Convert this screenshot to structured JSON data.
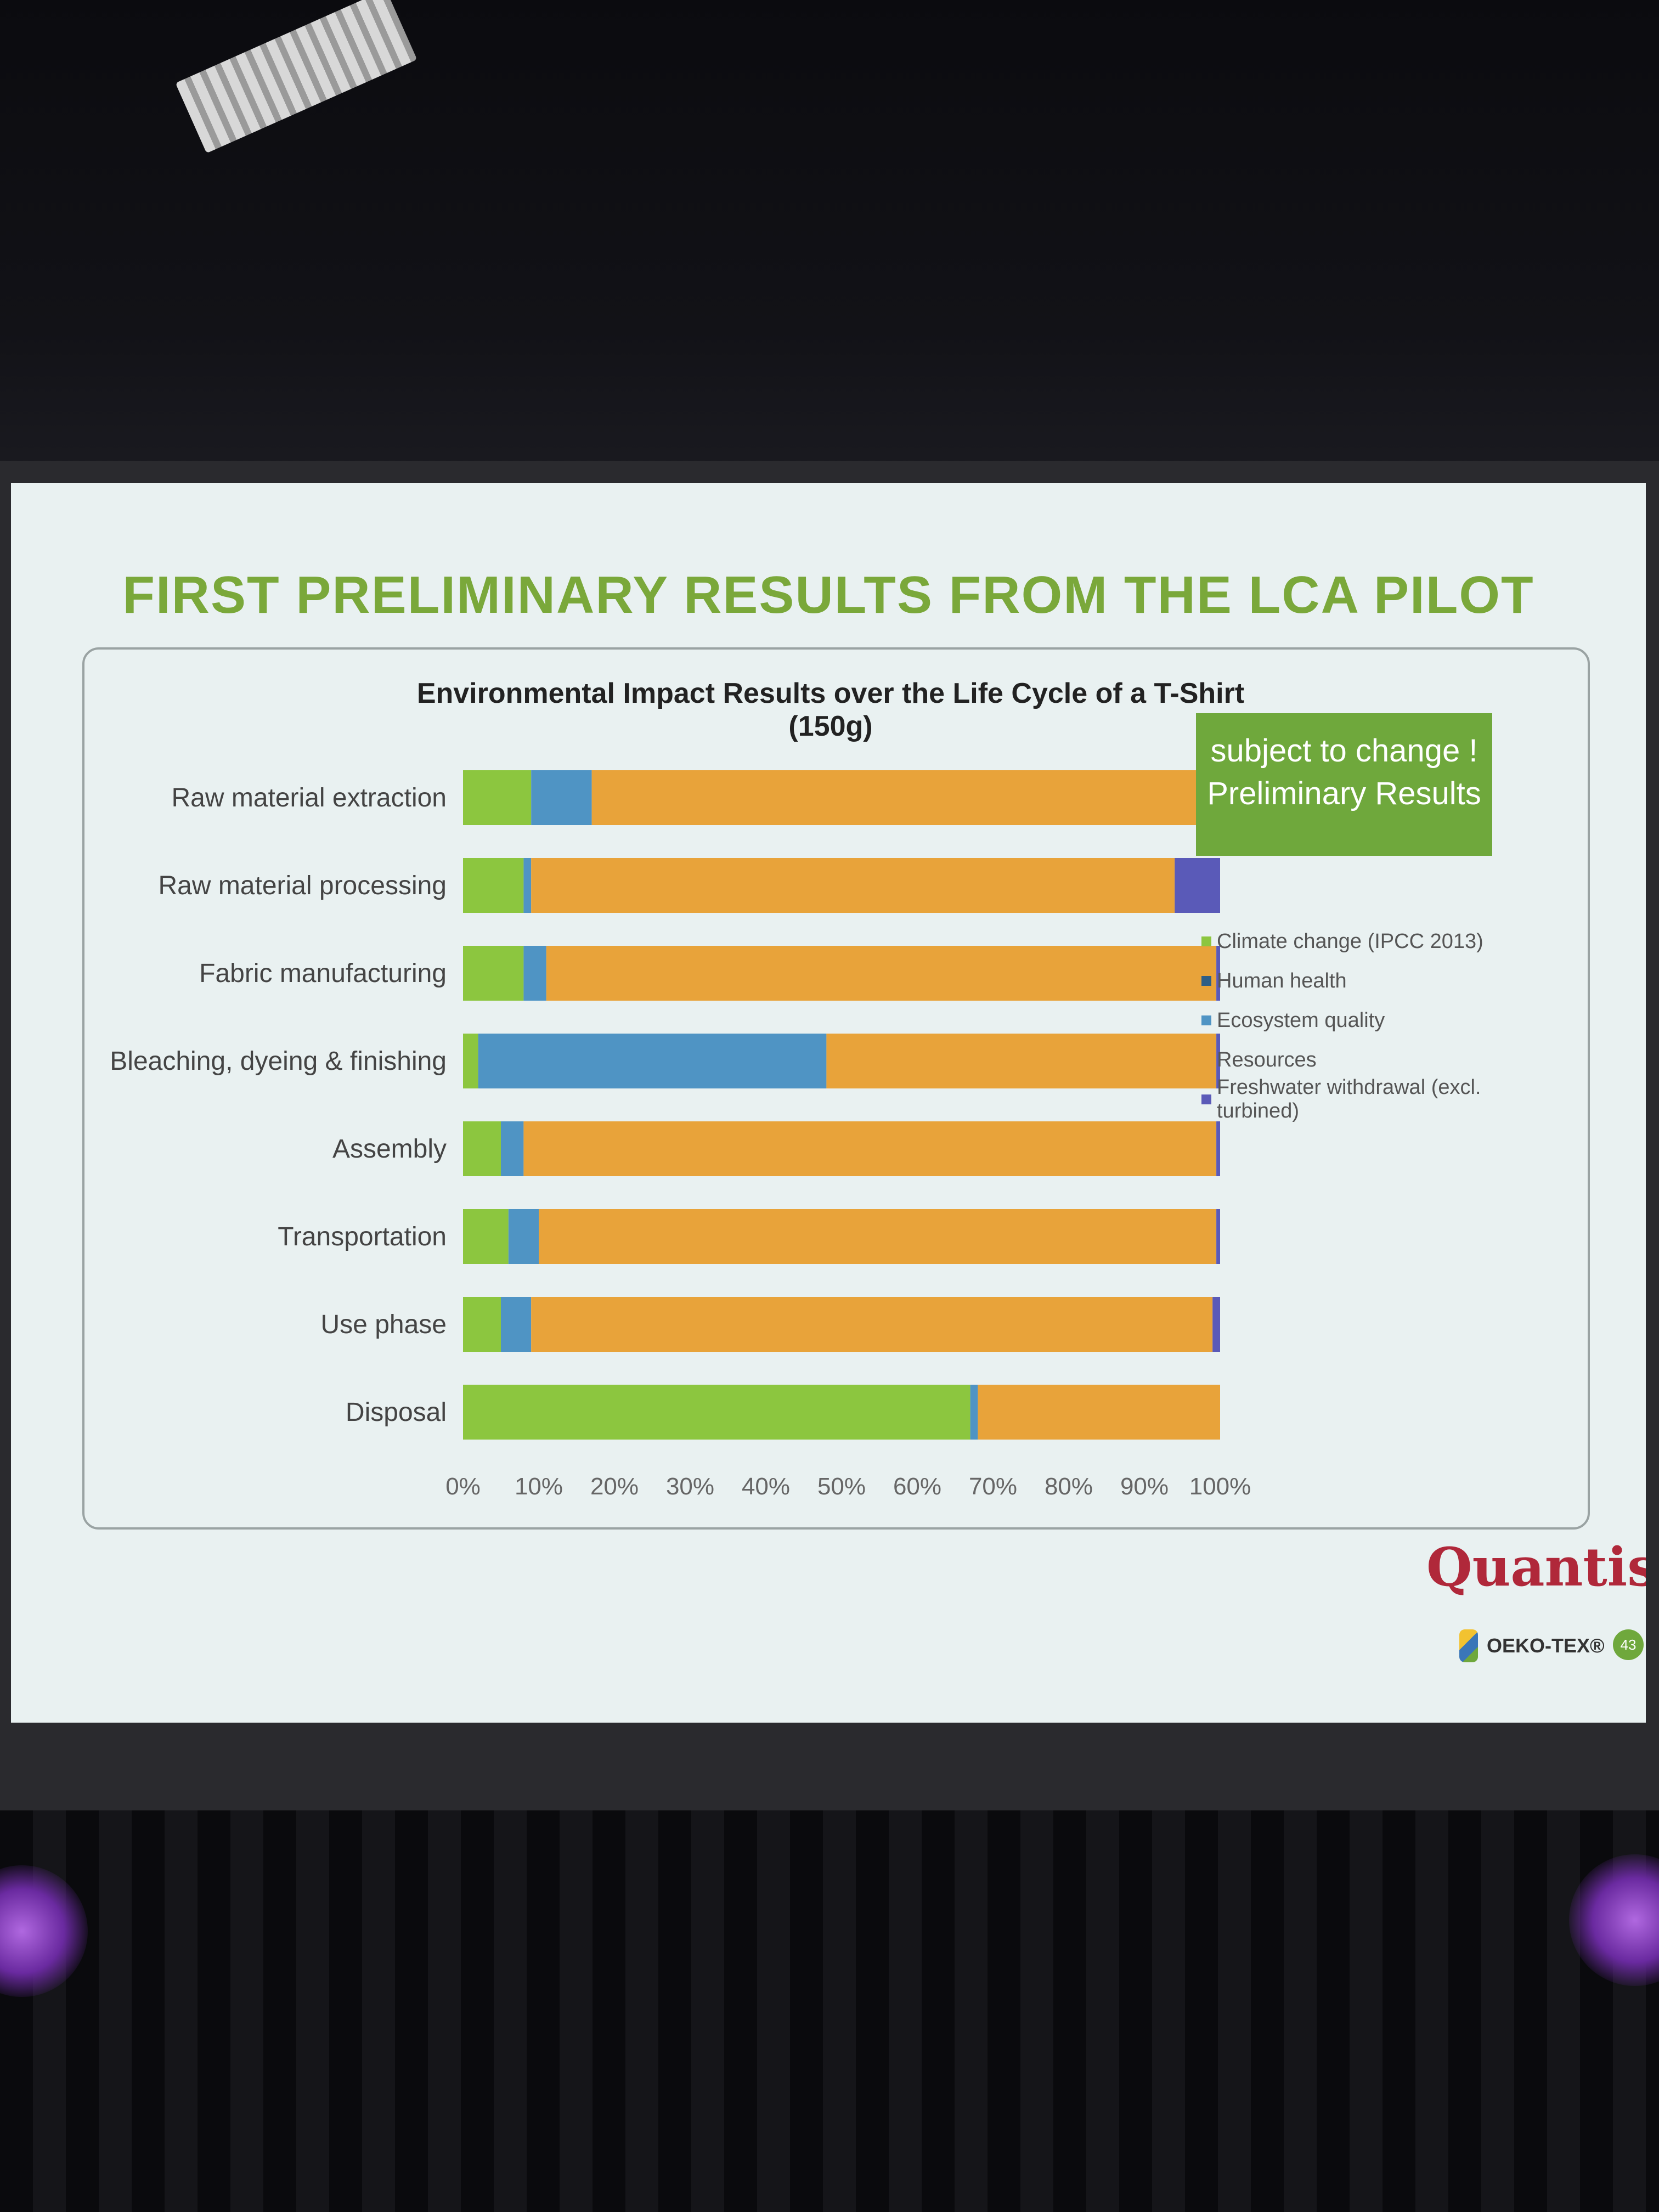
{
  "slide": {
    "title": "FIRST PRELIMINARY RESULTS FROM THE LCA PILOT",
    "badge_line1": "subject to change !",
    "badge_line2": "Preliminary Results",
    "logo_quantis": "Quantis",
    "logo_oekotex": "OEKO-TEX®",
    "page_number": "43"
  },
  "colors": {
    "climate_change": "#8cc63f",
    "human_health": "#2e5e86",
    "ecosystem_quality": "#4f94c4",
    "resources": "#e8a33a",
    "freshwater": "#5a5ab8",
    "title_green": "#7aa83a",
    "badge_green": "#6fa83c"
  },
  "chart_data": {
    "type": "bar",
    "orientation": "horizontal",
    "stacked": true,
    "title": "Environmental Impact Results over the Life Cycle of a T-Shirt (150g)",
    "categories": [
      "Raw material extraction",
      "Raw material processing",
      "Fabric manufacturing",
      "Bleaching, dyeing & finishing",
      "Assembly",
      "Transportation",
      "Use phase",
      "Disposal"
    ],
    "series": [
      {
        "name": "Climate change (IPCC 2013)",
        "color": "#8cc63f",
        "values": [
          9,
          8,
          8,
          2,
          5,
          6,
          5,
          67
        ]
      },
      {
        "name": "Human health",
        "color": "#2e5e86",
        "values": [
          0,
          0,
          0,
          0,
          0,
          0,
          0,
          0
        ]
      },
      {
        "name": "Ecosystem quality",
        "color": "#4f94c4",
        "values": [
          8,
          1,
          3,
          46,
          3,
          4,
          4,
          1
        ]
      },
      {
        "name": "Resources",
        "color": "#e8a33a",
        "values": [
          83,
          85,
          88.5,
          51.5,
          91.5,
          89.5,
          90,
          32
        ]
      },
      {
        "name": "Freshwater withdrawal (excl. turbined)",
        "color": "#5a5ab8",
        "values": [
          0,
          6,
          0.5,
          0.5,
          0.5,
          0.5,
          1,
          0
        ]
      }
    ],
    "x_ticks": [
      "0%",
      "10%",
      "20%",
      "30%",
      "40%",
      "50%",
      "60%",
      "70%",
      "80%",
      "90%",
      "100%"
    ],
    "xlim": [
      0,
      100
    ],
    "legend_position": "right",
    "grid": false
  }
}
